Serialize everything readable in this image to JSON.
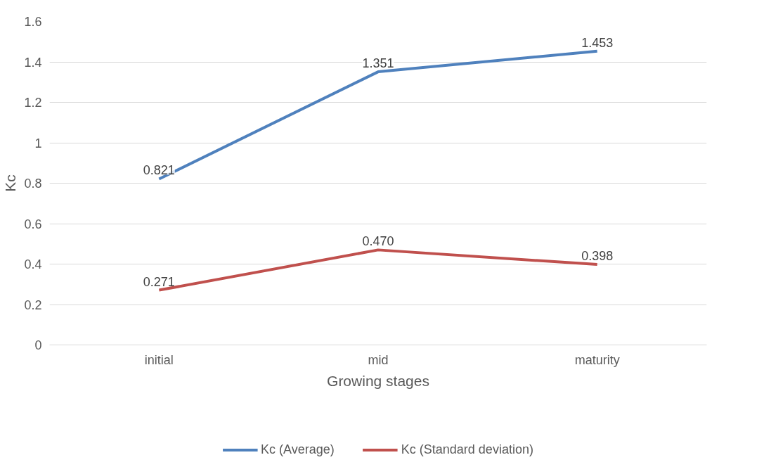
{
  "chart_data": {
    "type": "line",
    "xlabel": "Growing stages",
    "ylabel": "Kc",
    "categories": [
      "initial",
      "mid",
      "maturity"
    ],
    "series": [
      {
        "name": "Kc (Average)",
        "color": "#4f81bd",
        "values": [
          0.821,
          1.351,
          1.453
        ],
        "value_labels": [
          "0.821",
          "1.351",
          "1.453"
        ]
      },
      {
        "name": "Kc (Standard deviation)",
        "color": "#c0504d",
        "values": [
          0.271,
          0.47,
          0.398
        ],
        "value_labels": [
          "0.271",
          "0.470",
          "0.398"
        ]
      }
    ],
    "ylim": [
      0,
      1.6
    ],
    "yticks": [
      0,
      0.2,
      0.4,
      0.6,
      0.8,
      1,
      1.2,
      1.4,
      1.6
    ],
    "grid": "y",
    "legend": "bottom",
    "marker": "none",
    "line_style": "solid"
  }
}
